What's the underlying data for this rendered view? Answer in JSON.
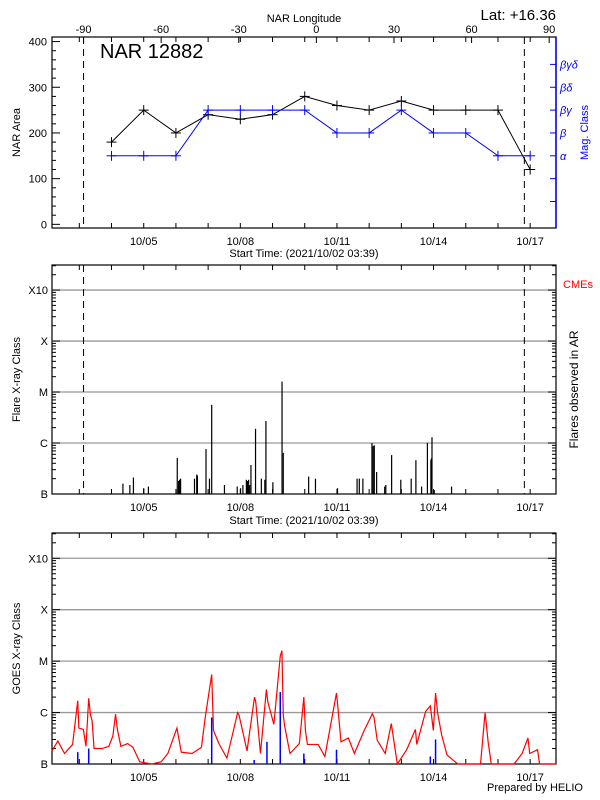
{
  "year": 2021,
  "time_axis": {
    "start": "10/02 03:39",
    "end": "10/17 19:15",
    "tick_labels": [
      "10/05",
      "10/08",
      "10/11",
      "10/14",
      "10/17"
    ],
    "tick_label_times": [
      "10/05 00:00",
      "10/08 00:00",
      "10/11 00:00",
      "10/14 00:00",
      "10/17 00:00"
    ],
    "minor_ticks": "daily",
    "start_time_label": "Start Time: (2021/10/02 03:39)"
  },
  "footer": "Prepared by HELIO",
  "chart_data": [
    {
      "type": "line",
      "title": "NAR 12882",
      "annotation": "Lat: +16.36",
      "xlabel": "Start Time: (2021/10/02 03:39)",
      "ylabel": "NAR Area",
      "ylim": [
        -8,
        410
      ],
      "yticks": [
        0,
        100,
        200,
        300,
        400
      ],
      "top_axis": {
        "label": "NAR Longitude",
        "ticks": [
          -90,
          -60,
          -30,
          0,
          30,
          60,
          90
        ],
        "tick_times": [
          "10/03 03:10",
          "10/05 13:00",
          "10/07 22:50",
          "10/10 08:40",
          "10/12 18:30",
          "10/15 04:20",
          "10/17 14:10"
        ]
      },
      "limb_lines": [
        "10/03 03:10",
        "10/16 19:40"
      ],
      "right_axis": {
        "label": "Mag. Class",
        "color": "#0000ff",
        "levels": {
          "α": 150,
          "β": 200,
          "βγ": 250,
          "βδ": 300,
          "βγδ": 350
        },
        "extra_ticks": [
          50,
          100
        ]
      },
      "x": [
        "10/04 00:00",
        "10/05 00:00",
        "10/06 00:00",
        "10/07 00:00",
        "10/08 00:00",
        "10/09 00:00",
        "10/10 00:00",
        "10/11 00:00",
        "10/12 00:00",
        "10/13 00:00",
        "10/14 00:00",
        "10/15 00:00",
        "10/16 00:00",
        "10/17 00:00"
      ],
      "series": [
        {
          "name": "NAR Area",
          "color": "#000000",
          "values": [
            180,
            250,
            200,
            240,
            230,
            240,
            280,
            260,
            250,
            270,
            250,
            250,
            250,
            120
          ]
        },
        {
          "name": "Mag. Class",
          "color": "#0000ff",
          "values": [
            "α",
            "α",
            "α",
            "βγ",
            "βγ",
            "βγ",
            "βγ",
            "β",
            "β",
            "βγ",
            "β",
            "β",
            "α",
            "α"
          ]
        }
      ],
      "grid": false
    },
    {
      "type": "bar",
      "xlabel": "Start Time: (2021/10/02 03:39)",
      "ylabel": "Flare X-ray Class",
      "right_label": "Flares observed in AR",
      "cme_label": "CMEs",
      "cme_color": "#ff0000",
      "scale": "log",
      "ylim": [
        "B1.0",
        "X31"
      ],
      "yticks": [
        "B",
        "C",
        "M",
        "X",
        "X10"
      ],
      "grid": true,
      "limb_lines": [
        "10/03 03:10",
        "10/16 19:40"
      ],
      "flares": [
        [
          "10/04 08:30",
          "B1.6"
        ],
        [
          "10/04 13:40",
          "B1.5"
        ],
        [
          "10/04 16:20",
          "B2.1"
        ],
        [
          "10/05 00:00",
          "B1.3"
        ],
        [
          "10/05 03:30",
          "B1.4"
        ],
        [
          "10/06 01:00",
          "B5.1"
        ],
        [
          "10/06 02:00",
          "B1.8"
        ],
        [
          "10/06 02:40",
          "B1.9"
        ],
        [
          "10/06 03:30",
          "B2.0"
        ],
        [
          "10/06 13:50",
          "B2.0"
        ],
        [
          "10/06 15:30",
          "B2.4"
        ],
        [
          "10/06 16:00",
          "B2.3"
        ],
        [
          "10/06 22:25",
          "B7.6"
        ],
        [
          "10/07 01:00",
          "B2.0"
        ],
        [
          "10/07 02:40",
          "C5.6"
        ],
        [
          "10/07 12:10",
          "B1.5"
        ],
        [
          "10/07 21:40",
          "B1.4"
        ],
        [
          "10/08 00:10",
          "B1.3"
        ],
        [
          "10/08 01:55",
          "B1.5"
        ],
        [
          "10/08 04:30",
          "B1.9"
        ],
        [
          "10/08 05:20",
          "B1.8"
        ],
        [
          "10/08 06:10",
          "B1.9"
        ],
        [
          "10/08 07:00",
          "B1.5"
        ],
        [
          "10/08 07:55",
          "B3.7"
        ],
        [
          "10/08 11:20",
          "C1.9"
        ],
        [
          "10/08 15:40",
          "B2.0"
        ],
        [
          "10/08 18:15",
          "B1.9"
        ],
        [
          "10/08 19:05",
          "C2.7"
        ],
        [
          "10/09 00:15",
          "B1.7"
        ],
        [
          "10/09 07:05",
          "M1.6"
        ],
        [
          "10/09 08:00",
          "B6.4"
        ],
        [
          "10/10 02:55",
          "B2.2"
        ],
        [
          "10/10 08:00",
          "B2.0"
        ],
        [
          "10/11 00:25",
          "B1.3"
        ],
        [
          "10/11 15:00",
          "B2.0"
        ],
        [
          "10/11 16:40",
          "B2.0"
        ],
        [
          "10/11 19:20",
          "B2.0"
        ],
        [
          "10/12 02:05",
          "C1.0"
        ],
        [
          "10/12 03:00",
          "B8.7"
        ],
        [
          "10/12 03:50",
          "B9.0"
        ],
        [
          "10/12 05:35",
          "B2.7"
        ],
        [
          "10/12 11:35",
          "B1.4"
        ],
        [
          "10/12 12:25",
          "B1.5"
        ],
        [
          "10/12 16:45",
          "B5.8"
        ],
        [
          "10/12 23:35",
          "B1.9"
        ],
        [
          "10/13 07:20",
          "B2.0"
        ],
        [
          "10/13 10:50",
          "B4.6"
        ],
        [
          "10/13 15:05",
          "B1.4"
        ],
        [
          "10/13 19:25",
          "C1.0"
        ],
        [
          "10/13 22:00",
          "B4.6"
        ],
        [
          "10/13 22:20",
          "B5.0"
        ],
        [
          "10/13 22:50",
          "C1.3"
        ],
        [
          "10/14 00:30",
          "B1.2"
        ],
        [
          "10/14 13:25",
          "B1.4"
        ]
      ]
    },
    {
      "type": "line",
      "xlabel": "",
      "ylabel": "GOES X-ray Class",
      "scale": "log",
      "ylim": [
        "B1.0",
        "X31"
      ],
      "yticks": [
        "B",
        "C",
        "M",
        "X",
        "X10"
      ],
      "grid": true,
      "series": [
        {
          "color": "#ff0000",
          "values": [
            [
              "10/02 03:39",
              "B1.8"
            ],
            [
              "10/02 08:00",
              "B2.8"
            ],
            [
              "10/02 13:00",
              "B1.6"
            ],
            [
              "10/02 19:00",
              "B2.4"
            ],
            [
              "10/02 22:50",
              "C1.7"
            ],
            [
              "10/02 23:40",
              "B5.0"
            ],
            [
              "10/03 03:00",
              "B4.7"
            ],
            [
              "10/03 05:00",
              "B2.2"
            ],
            [
              "10/03 07:00",
              "C1.9"
            ],
            [
              "10/03 08:20",
              "B9.0"
            ],
            [
              "10/03 09:30",
              "B7.0"
            ],
            [
              "10/03 11:00",
              "B2.0"
            ],
            [
              "10/03 17:00",
              "B2.0"
            ],
            [
              "10/03 22:00",
              "B2.2"
            ],
            [
              "10/04 01:00",
              "B3.5"
            ],
            [
              "10/04 03:00",
              "B9.3"
            ],
            [
              "10/04 04:30",
              "B4.5"
            ],
            [
              "10/04 07:00",
              "B2.2"
            ],
            [
              "10/04 12:00",
              "B2.5"
            ],
            [
              "10/04 16:00",
              "B2.1"
            ],
            [
              "10/04 21:00",
              "B1.1"
            ],
            [
              "10/05 06:00",
              "B1.0"
            ],
            [
              "10/05 13:00",
              "B1.1"
            ],
            [
              "10/05 18:00",
              "B1.6"
            ],
            [
              "10/06 00:45",
              "B5.0"
            ],
            [
              "10/06 04:00",
              "B1.7"
            ],
            [
              "10/06 12:00",
              "B1.6"
            ],
            [
              "10/06 19:00",
              "B2.1"
            ],
            [
              "10/06 21:50",
              "B8.0"
            ],
            [
              "10/07 02:40",
              "C5.5"
            ],
            [
              "10/07 04:00",
              "B4.5"
            ],
            [
              "10/07 08:00",
              "B2.5"
            ],
            [
              "10/07 14:00",
              "B1.3"
            ],
            [
              "10/07 22:00",
              "C1.0"
            ],
            [
              "10/07 23:00",
              "B9.0"
            ],
            [
              "10/08 05:00",
              "B1.8"
            ],
            [
              "10/08 10:35",
              "C2.0"
            ],
            [
              "10/08 11:30",
              "C1.6"
            ],
            [
              "10/08 15:00",
              "B1.6"
            ],
            [
              "10/08 19:25",
              "C2.8"
            ],
            [
              "10/08 20:30",
              "C1.6"
            ],
            [
              "10/09 01:00",
              "B5.9"
            ],
            [
              "10/09 05:45",
              "M1.25"
            ],
            [
              "10/09 07:00",
              "M1.6"
            ],
            [
              "10/09 08:00",
              "B9.0"
            ],
            [
              "10/09 09:00",
              "B5.5"
            ],
            [
              "10/09 13:00",
              "B1.6"
            ],
            [
              "10/09 20:00",
              "B2.5"
            ],
            [
              "10/09 23:20",
              "C2.0"
            ],
            [
              "10/10 00:30",
              "B4.5"
            ],
            [
              "10/10 02:00",
              "B2.4"
            ],
            [
              "10/10 10:00",
              "B2.4"
            ],
            [
              "10/10 15:00",
              "B1.4"
            ],
            [
              "10/10 23:40",
              "C2.4"
            ],
            [
              "10/11 00:40",
              "C1.3"
            ],
            [
              "10/11 03:00",
              "B2.7"
            ],
            [
              "10/11 08:30",
              "B3.2"
            ],
            [
              "10/11 13:00",
              "B1.6"
            ],
            [
              "10/11 20:10",
              "B4.4"
            ],
            [
              "10/12 02:25",
              "B9.5"
            ],
            [
              "10/12 03:40",
              "B8.0"
            ],
            [
              "10/12 06:00",
              "B2.9"
            ],
            [
              "10/12 12:00",
              "B1.6"
            ],
            [
              "10/12 16:30",
              "B6.1"
            ],
            [
              "10/12 21:00",
              "B1.0"
            ],
            [
              "10/13 04:00",
              "B1.9"
            ],
            [
              "10/13 10:30",
              "B4.7"
            ],
            [
              "10/13 11:30",
              "B2.4"
            ],
            [
              "10/13 18:05",
              "C1.05"
            ],
            [
              "10/13 21:35",
              "C1.35"
            ],
            [
              "10/13 23:50",
              "B4.5"
            ],
            [
              "10/14 01:30",
              "C2.4"
            ],
            [
              "10/14 03:00",
              "C1.0"
            ],
            [
              "10/14 06:00",
              "B3.7"
            ],
            [
              "10/14 10:00",
              "B1.5"
            ],
            [
              "10/14 18:00",
              "B1.0"
            ],
            [
              "10/15 11:00",
              "B1.0"
            ],
            [
              "10/15 14:25",
              "C1.0"
            ],
            [
              "10/15 16:40",
              "B2.7"
            ],
            [
              "10/15 19:00",
              "B1.0"
            ],
            [
              "10/16 12:00",
              "B1.0"
            ],
            [
              "10/16 18:00",
              "B1.6"
            ],
            [
              "10/16 22:20",
              "B3.2"
            ],
            [
              "10/16 23:40",
              "B1.6"
            ],
            [
              "10/17 05:30",
              "B1.9"
            ],
            [
              "10/17 07:00",
              "B1.0"
            ],
            [
              "10/17 19:15",
              "B1.0"
            ]
          ]
        },
        {
          "color": "#0000ff",
          "style": "bars",
          "values": [
            [
              "10/02 22:50",
              "B1.7"
            ],
            [
              "10/03 07:00",
              "B2.0"
            ],
            [
              "10/07 02:40",
              "B8.0"
            ],
            [
              "10/08 10:20",
              "B1.2"
            ],
            [
              "10/08 19:50",
              "B2.7"
            ],
            [
              "10/09 05:45",
              "C2.5"
            ],
            [
              "10/09 23:20",
              "B1.6"
            ],
            [
              "10/10 23:40",
              "B1.9"
            ],
            [
              "10/13 21:35",
              "B1.4"
            ],
            [
              "10/14 01:30",
              "B3.0"
            ]
          ]
        }
      ]
    }
  ]
}
